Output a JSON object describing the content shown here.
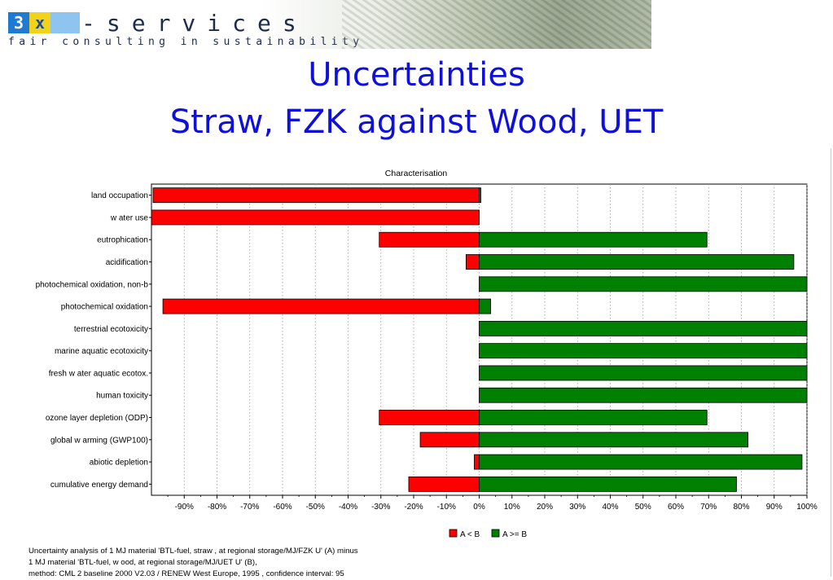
{
  "header": {
    "logo_letter_1": "3",
    "logo_letter_2": "x",
    "logo_word": "-services",
    "tagline": "fair consulting in sustainability"
  },
  "slide": {
    "title_line1": "Uncertainties",
    "title_line2": "Straw, FZK against Wood, UET"
  },
  "chart_data": {
    "type": "bar",
    "orientation": "horizontal",
    "stacked": "diverging",
    "title": "Characterisation",
    "categories": [
      "land occupation",
      "w ater use",
      "eutrophication",
      "acidification",
      "photochemical oxidation, non-b",
      "photochemical oxidation",
      "terrestrial ecotoxicity",
      "marine aquatic ecotoxicity",
      "fresh w ater aquatic ecotox.",
      "human toxicity",
      "ozone layer depletion (ODP)",
      "global w arming (GWP100)",
      "abiotic depletion",
      "cumulative energy demand"
    ],
    "series": [
      {
        "name": "A < B",
        "color": "#ff0000",
        "values": [
          -99.5,
          -100,
          -30.5,
          -4,
          0,
          -96.5,
          0,
          0,
          0,
          0,
          -30.5,
          -18,
          -1.5,
          -21.5
        ]
      },
      {
        "name": "A >= B",
        "color": "#008000",
        "values": [
          0.5,
          0,
          69.5,
          96,
          100,
          3.5,
          100,
          100,
          100,
          100,
          69.5,
          82,
          98.5,
          78.5
        ]
      }
    ],
    "xlim": [
      -100,
      100
    ],
    "xticks": [
      -90,
      -80,
      -70,
      -60,
      -50,
      -40,
      -30,
      -20,
      -10,
      0,
      10,
      20,
      30,
      40,
      50,
      60,
      70,
      80,
      90,
      100
    ],
    "xtick_labels": [
      "-90%",
      "-80%",
      "-70%",
      "-60%",
      "-50%",
      "-40%",
      "-30%",
      "-20%",
      "-10%",
      "0%",
      "10%",
      "20%",
      "30%",
      "40%",
      "50%",
      "60%",
      "70%",
      "80%",
      "90%",
      "100%"
    ],
    "grid": "vertical dotted",
    "legend": "bottom-center"
  },
  "footnote": {
    "line1": "Uncertainty analysis of 1 MJ material 'BTL-fuel, straw , at regional storage/MJ/FZK U' (A) minus",
    "line2": "1 MJ material 'BTL-fuel, w ood, at regional storage/MJ/UET U' (B),",
    "line3": "method: CML 2 baseline 2000 V2.03 / RENEW West Europe, 1995 , confidence interval: 95"
  }
}
